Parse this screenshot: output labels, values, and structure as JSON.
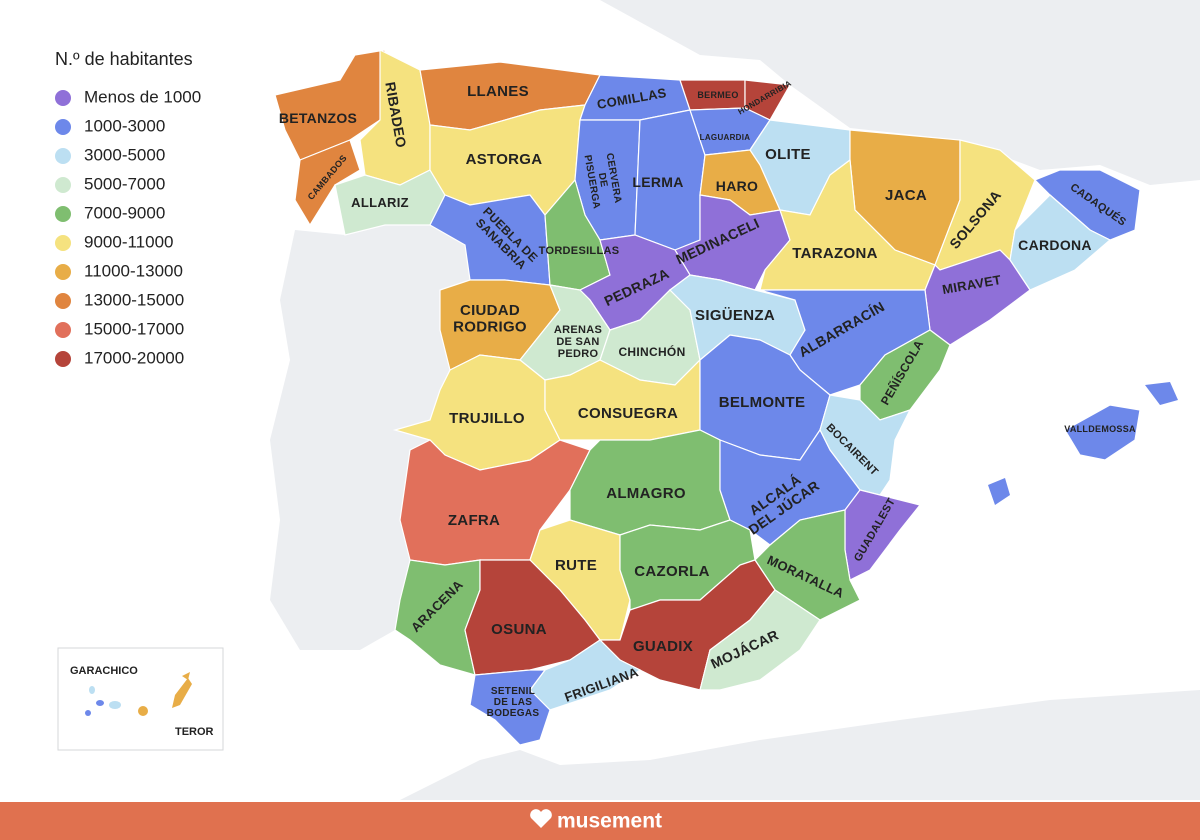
{
  "legend": {
    "title": "N.º de habitantes",
    "items": [
      {
        "label": "Menos de 1000",
        "color": "#8f70d8"
      },
      {
        "label": "1000-3000",
        "color": "#6d88ea"
      },
      {
        "label": "3000-5000",
        "color": "#bcdff2"
      },
      {
        "label": "5000-7000",
        "color": "#cfe9d0"
      },
      {
        "label": "7000-9000",
        "color": "#7fbe70"
      },
      {
        "label": "9000-11000",
        "color": "#f5e27f"
      },
      {
        "label": "11000-13000",
        "color": "#e8ad47"
      },
      {
        "label": "13000-15000",
        "color": "#e0853f"
      },
      {
        "label": "15000-17000",
        "color": "#e1705b"
      },
      {
        "label": "17000-20000",
        "color": "#b5443a"
      }
    ]
  },
  "regions": [
    {
      "label": [
        "BETANZOS"
      ],
      "color": "#e0853f"
    },
    {
      "label": [
        "CAMBADOS"
      ],
      "color": "#e0853f"
    },
    {
      "label": [
        "RIBADEO"
      ],
      "color": "#f5e27f"
    },
    {
      "label": [
        "LLANES"
      ],
      "color": "#e0853f"
    },
    {
      "label": [
        "ALLARIZ"
      ],
      "color": "#cfe9d0"
    },
    {
      "label": [
        "ASTORGA"
      ],
      "color": "#f5e27f"
    },
    {
      "label": [
        "COMILLAS"
      ],
      "color": "#6d88ea"
    },
    {
      "label": [
        "CERVERA",
        "DE",
        "PISUERGA"
      ],
      "color": "#6d88ea"
    },
    {
      "label": [
        "LERMA"
      ],
      "color": "#6d88ea"
    },
    {
      "label": [
        "BERMEO"
      ],
      "color": "#b5443a"
    },
    {
      "label": [
        "HONDARRIBIA"
      ],
      "color": "#b5443a"
    },
    {
      "label": [
        "LAGUARDIA"
      ],
      "color": "#6d88ea"
    },
    {
      "label": [
        "OLITE"
      ],
      "color": "#bcdff2"
    },
    {
      "label": [
        "HARO"
      ],
      "color": "#e8ad47"
    },
    {
      "label": [
        "JACA"
      ],
      "color": "#e8ad47"
    },
    {
      "label": [
        "SOLSONA"
      ],
      "color": "#f5e27f"
    },
    {
      "label": [
        "CADAQUÉS"
      ],
      "color": "#6d88ea"
    },
    {
      "label": [
        "CARDONA"
      ],
      "color": "#bcdff2"
    },
    {
      "label": [
        "PUEBLA DE",
        "SANABRIA"
      ],
      "color": "#6d88ea"
    },
    {
      "label": [
        "TORDESILLAS"
      ],
      "color": "#7fbe70"
    },
    {
      "label": [
        "MEDINACELI"
      ],
      "color": "#8f70d8"
    },
    {
      "label": [
        "TARAZONA"
      ],
      "color": "#f5e27f"
    },
    {
      "label": [
        "PEDRAZA"
      ],
      "color": "#8f70d8"
    },
    {
      "label": [
        "MIRAVET"
      ],
      "color": "#8f70d8"
    },
    {
      "label": [
        "CIUDAD",
        "RODRIGO"
      ],
      "color": "#e8ad47"
    },
    {
      "label": [
        "ARENAS",
        "DE SAN",
        "PEDRO"
      ],
      "color": "#cfe9d0"
    },
    {
      "label": [
        "CHINCHÓN"
      ],
      "color": "#cfe9d0"
    },
    {
      "label": [
        "SIGÜENZA"
      ],
      "color": "#bcdff2"
    },
    {
      "label": [
        "ALBARRACÍN"
      ],
      "color": "#6d88ea"
    },
    {
      "label": [
        "PEÑÍSCOLA"
      ],
      "color": "#7fbe70"
    },
    {
      "label": [
        "TRUJILLO"
      ],
      "color": "#f5e27f"
    },
    {
      "label": [
        "CONSUEGRA"
      ],
      "color": "#f5e27f"
    },
    {
      "label": [
        "BELMONTE"
      ],
      "color": "#6d88ea"
    },
    {
      "label": [
        "BOCAIRENT"
      ],
      "color": "#bcdff2"
    },
    {
      "label": [
        "VALLDEMOSSA"
      ],
      "color": "#6d88ea"
    },
    {
      "label": [
        "ZAFRA"
      ],
      "color": "#e1705b"
    },
    {
      "label": [
        "ALMAGRO"
      ],
      "color": "#7fbe70"
    },
    {
      "label": [
        "ALCALÁ",
        "DEL JÚCAR"
      ],
      "color": "#6d88ea"
    },
    {
      "label": [
        "GUADALEST"
      ],
      "color": "#8f70d8"
    },
    {
      "label": [
        "RUTE"
      ],
      "color": "#f5e27f"
    },
    {
      "label": [
        "CAZORLA"
      ],
      "color": "#7fbe70"
    },
    {
      "label": [
        "MORATALLA"
      ],
      "color": "#7fbe70"
    },
    {
      "label": [
        "ARACENA"
      ],
      "color": "#7fbe70"
    },
    {
      "label": [
        "OSUNA"
      ],
      "color": "#b5443a"
    },
    {
      "label": [
        "GUADIX"
      ],
      "color": "#b5443a"
    },
    {
      "label": [
        "MOJÁCAR"
      ],
      "color": "#cfe9d0"
    },
    {
      "label": [
        "FRIGILIANA"
      ],
      "color": "#bcdff2"
    },
    {
      "label": [
        "SETENIL",
        "DE LAS",
        "BODEGAS"
      ],
      "color": "#6d88ea"
    }
  ],
  "inset": {
    "labels": [
      "GARACHICO",
      "TEROR"
    ]
  },
  "footer": {
    "brand": "musement"
  }
}
